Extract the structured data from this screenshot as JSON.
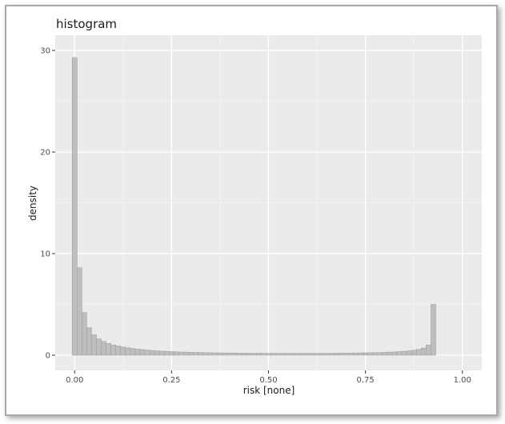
{
  "chart_data": {
    "type": "bar",
    "title": "histogram",
    "xlabel": "risk [none]",
    "ylabel": "density",
    "xlim": [
      -0.05,
      1.05
    ],
    "ylim": [
      -1.5,
      31.5
    ],
    "x_ticks": [
      0,
      0.25,
      0.5,
      0.75,
      1
    ],
    "x_tick_labels": [
      "0.00",
      "0.25",
      "0.50",
      "0.75",
      "1.00"
    ],
    "y_ticks": [
      0,
      10,
      20,
      30
    ],
    "y_tick_labels": [
      "0",
      "10",
      "20",
      "30"
    ],
    "grid": true,
    "legend": "none",
    "bin_width": 0.0125,
    "bin_start": -0.00625,
    "values": [
      29.3,
      8.6,
      4.2,
      2.7,
      2.0,
      1.6,
      1.35,
      1.15,
      1.0,
      0.9,
      0.8,
      0.72,
      0.66,
      0.6,
      0.55,
      0.5,
      0.46,
      0.43,
      0.4,
      0.37,
      0.35,
      0.33,
      0.31,
      0.3,
      0.28,
      0.27,
      0.26,
      0.25,
      0.24,
      0.23,
      0.22,
      0.22,
      0.21,
      0.21,
      0.2,
      0.2,
      0.19,
      0.19,
      0.19,
      0.18,
      0.18,
      0.18,
      0.18,
      0.18,
      0.18,
      0.18,
      0.18,
      0.18,
      0.18,
      0.18,
      0.18,
      0.18,
      0.19,
      0.19,
      0.19,
      0.2,
      0.2,
      0.21,
      0.21,
      0.22,
      0.23,
      0.24,
      0.25,
      0.26,
      0.28,
      0.3,
      0.32,
      0.35,
      0.38,
      0.42,
      0.48,
      0.56,
      0.7,
      1.0,
      5.0
    ]
  }
}
